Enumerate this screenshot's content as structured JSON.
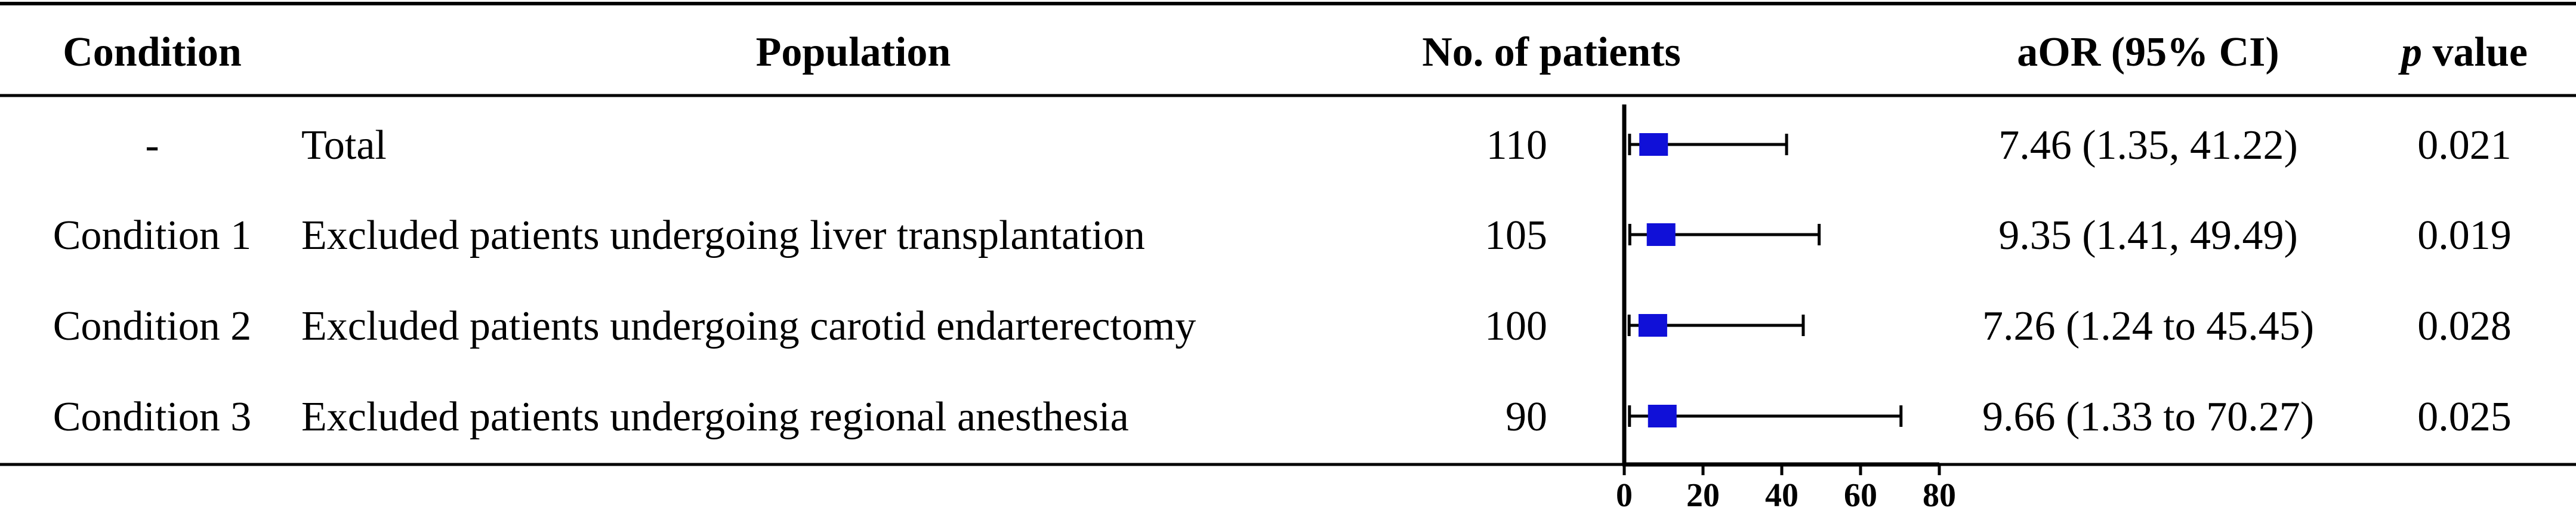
{
  "headers": {
    "condition": "Condition",
    "population": "Population",
    "patients": "No. of patients",
    "aor": "aOR (95% CI)",
    "p_italic": "p",
    "p_rest": " value"
  },
  "rows": [
    {
      "condition": "-",
      "population": "Total",
      "patients": "110",
      "aor_text": "7.46 (1.35, 41.22)",
      "p": "0.021"
    },
    {
      "condition": "Condition 1",
      "population": "Excluded patients undergoing liver transplantation",
      "patients": "105",
      "aor_text": "9.35 (1.41, 49.49)",
      "p": "0.019"
    },
    {
      "condition": "Condition 2",
      "population": "Excluded patients undergoing carotid endarterectomy",
      "patients": "100",
      "aor_text": "7.26 (1.24 to 45.45)",
      "p": "0.028"
    },
    {
      "condition": "Condition 3",
      "population": "Excluded patients undergoing regional anesthesia",
      "patients": "90",
      "aor_text": "9.66 (1.33 to 70.27)",
      "p": "0.025"
    }
  ],
  "chart_data": {
    "type": "scatter",
    "categories": [
      "Total",
      "Condition 1",
      "Condition 2",
      "Condition 3"
    ],
    "values": [
      7.46,
      9.35,
      7.26,
      9.66
    ],
    "lower": [
      1.35,
      1.41,
      1.24,
      1.33
    ],
    "upper": [
      41.22,
      49.49,
      45.45,
      70.27
    ],
    "xlim": [
      0,
      80
    ],
    "xticks": [
      "0",
      "20",
      "40",
      "60",
      "80"
    ],
    "marker_color": "#1010d8",
    "grid": false
  }
}
